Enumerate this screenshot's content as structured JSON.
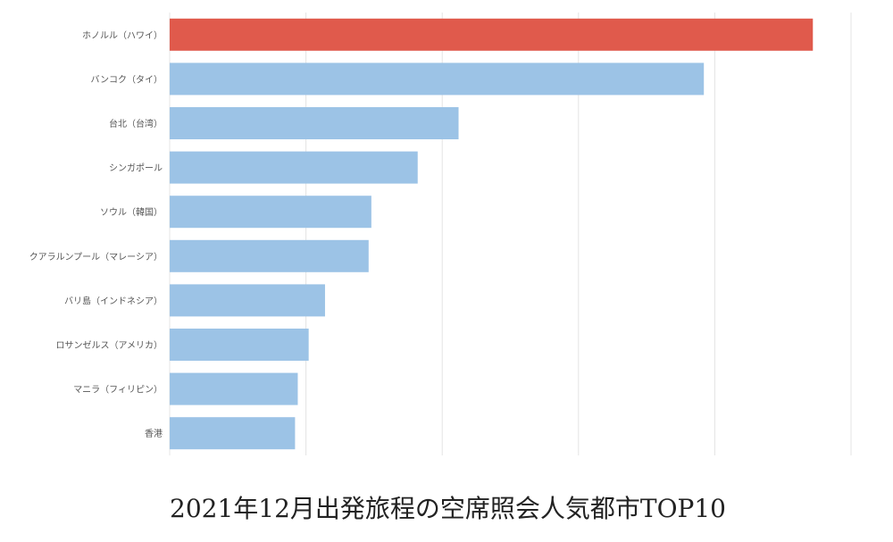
{
  "chart_data": {
    "type": "bar",
    "orientation": "horizontal",
    "title": "2021年12月出発旅程の空席照会人気都市TOP10",
    "categories": [
      "ホノルル（ハワイ）",
      "バンコク（タイ）",
      "台北（台湾）",
      "シンガポール",
      "ソウル（韓国）",
      "クアラルンプール（マレーシア）",
      "バリ島（インドネシア）",
      "ロサンゼルス（アメリカ）",
      "マニラ（フィリピン）",
      "香港"
    ],
    "values": [
      236,
      196,
      106,
      91,
      74,
      73,
      57,
      51,
      47,
      46
    ],
    "xlim": [
      0,
      250
    ],
    "grid": true,
    "highlight_color": "#e05a4c",
    "bar_color": "#9cc3e6"
  }
}
